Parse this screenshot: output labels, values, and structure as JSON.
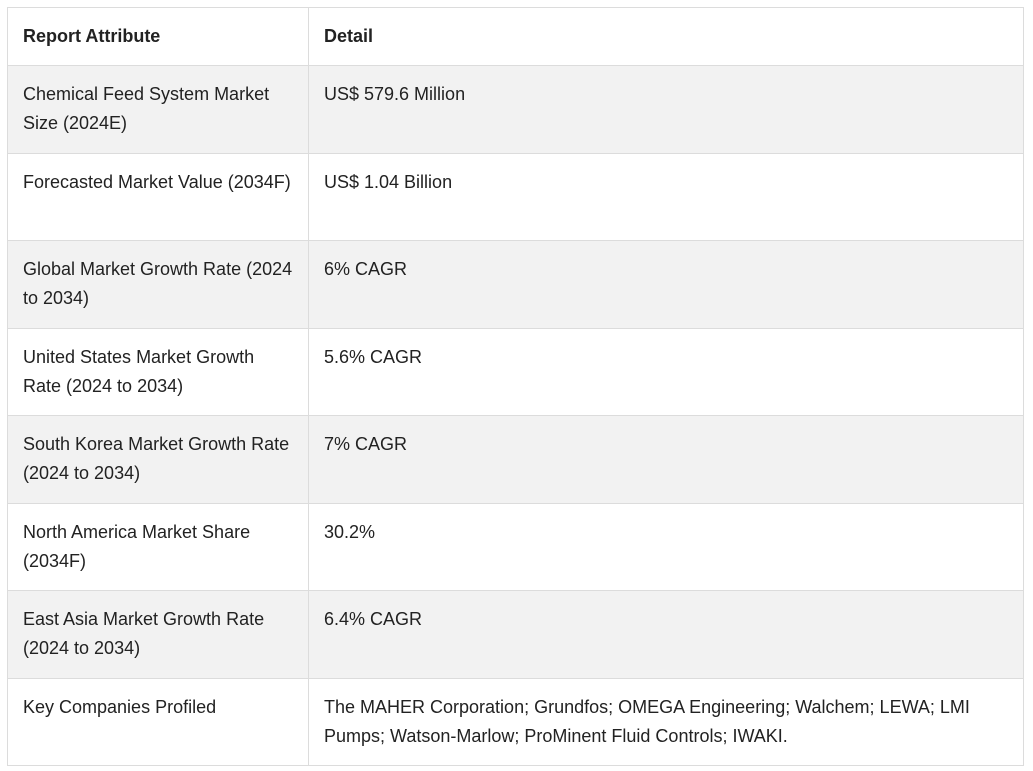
{
  "table": {
    "headers": [
      "Report Attribute",
      "Detail"
    ],
    "rows": [
      {
        "attribute": "Chemical Feed System Market Size (2024E)",
        "detail": "US$ 579.6 Million"
      },
      {
        "attribute": "Forecasted Market Value (2034F)",
        "detail": "US$ 1.04 Billion"
      },
      {
        "attribute": "Global Market Growth Rate (2024 to 2034)",
        "detail": "6% CAGR"
      },
      {
        "attribute": "United States Market Growth Rate (2024 to 2034)",
        "detail": "5.6% CAGR"
      },
      {
        "attribute": "South Korea Market Growth Rate (2024 to 2034)",
        "detail": "7% CAGR"
      },
      {
        "attribute": "North America Market Share (2034F)",
        "detail": "30.2%"
      },
      {
        "attribute": "East Asia Market Growth Rate (2024 to 2034)",
        "detail": "6.4% CAGR"
      },
      {
        "attribute": "Key Companies Profiled",
        "detail": "The MAHER Corporation; Grundfos; OMEGA Engineering; Walchem; LEWA; LMI Pumps; Watson-Marlow; ProMinent Fluid Controls; IWAKI."
      }
    ]
  }
}
